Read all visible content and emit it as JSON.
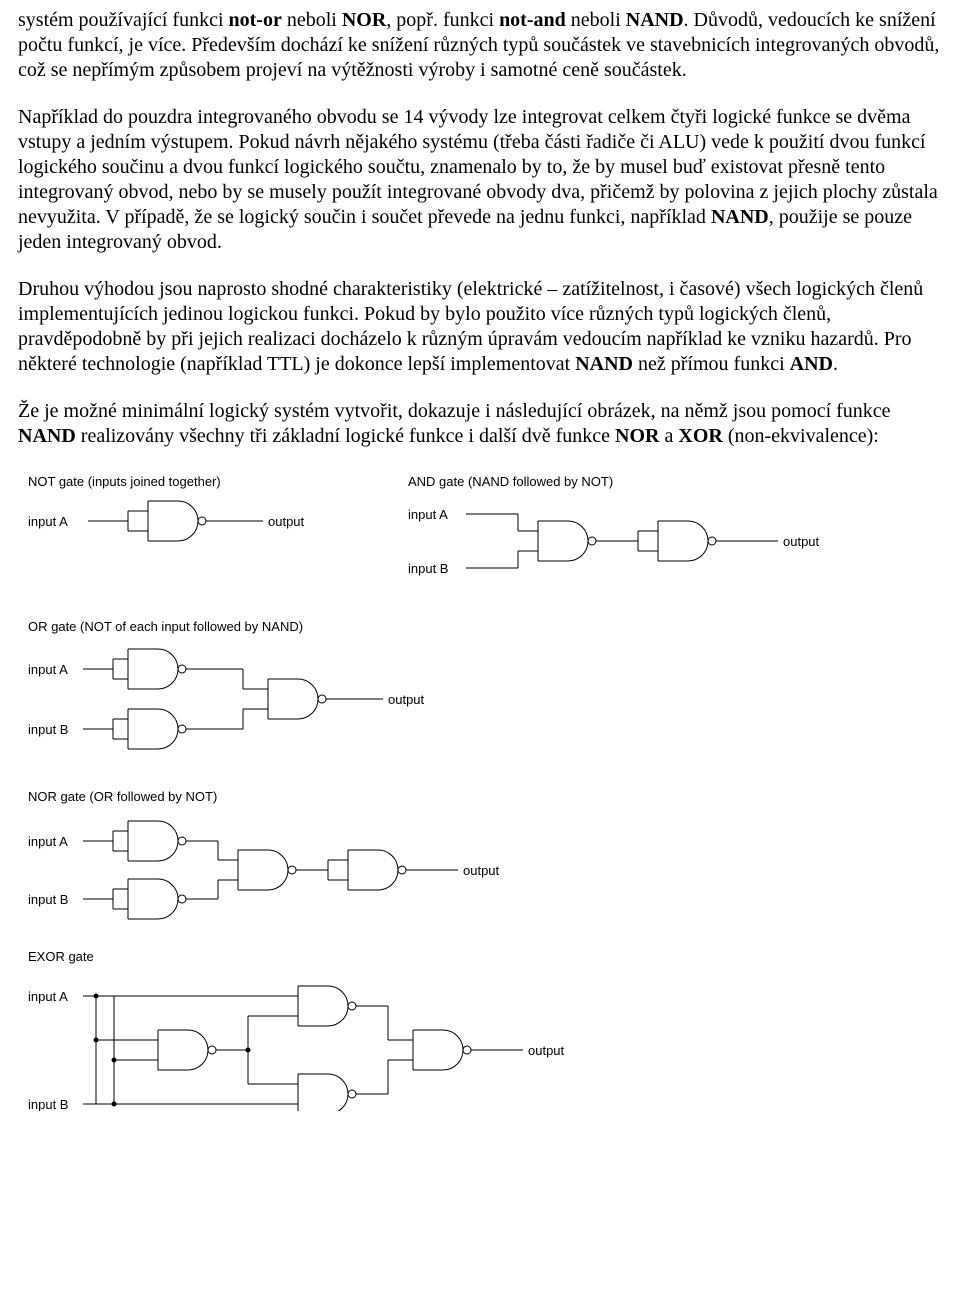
{
  "paragraphs": {
    "p1_a": "systém používající funkci ",
    "p1_b": "not-or",
    "p1_c": " neboli ",
    "p1_d": "NOR",
    "p1_e": ", popř. funkci ",
    "p1_f": "not-and",
    "p1_g": " neboli ",
    "p1_h": "NAND",
    "p1_i": ". Důvodů, vedoucích ke snížení počtu funkcí, je více. Především dochází ke snížení různých typů součástek ve stavebnicích integrovaných obvodů, což se nepřímým způsobem projeví na výtěžnosti výroby i samotné ceně součástek.",
    "p2_a": "Například do pouzdra integrovaného obvodu se 14 vývody lze integrovat celkem čtyři logické funkce se dvěma vstupy a jedním výstupem. Pokud návrh nějakého systému (třeba části řadiče či ALU) vede k použití dvou funkcí logického součinu a dvou funkcí logického součtu, znamenalo by to, že by musel buď existovat přesně tento integrovaný obvod, nebo by se musely použít integrované obvody dva, přičemž by polovina z jejich plochy zůstala nevyužita. V případě, že se logický součin i součet převede na jednu funkci, například ",
    "p2_b": "NAND",
    "p2_c": ", použije se pouze jeden integrovaný obvod.",
    "p3": "Druhou výhodou jsou naprosto shodné charakteristiky (elektrické – zatížitelnost, i časové) všech logických členů implementujících jedinou logickou funkci. Pokud by bylo použito více různých typů logických členů, pravděpodobně by při jejich realizaci docházelo k různým úpravám vedoucím například ke vzniku hazardů. Pro některé technologie (například TTL) je dokonce lepší implementovat ",
    "p3_b": "NAND",
    "p3_c": " než přímou funkci ",
    "p3_d": "AND",
    "p3_e": ".",
    "p4_a": "Že je možné minimální logický systém vytvořit, dokazuje i následující obrázek, na němž jsou pomocí funkce ",
    "p4_b": "NAND",
    "p4_c": " realizovány všechny tři základní logické funkce i další dvě funkce ",
    "p4_d": "NOR",
    "p4_e": " a ",
    "p4_f": "XOR",
    "p4_g": " (non-ekvivalence):"
  },
  "diagram": {
    "stroke": "#000000",
    "fill": "#ffffff",
    "font_family": "Verdana, Geneva, sans-serif",
    "font_size": 13,
    "labels": {
      "not_title": "NOT gate (inputs joined together)",
      "and_title": "AND gate (NAND followed by NOT)",
      "or_title": "OR gate (NOT of each input followed by NAND)",
      "nor_title": "NOR gate (OR followed by NOT)",
      "exor_title": "EXOR gate",
      "input_a": "input A",
      "input_b": "input B",
      "output": "output"
    }
  }
}
